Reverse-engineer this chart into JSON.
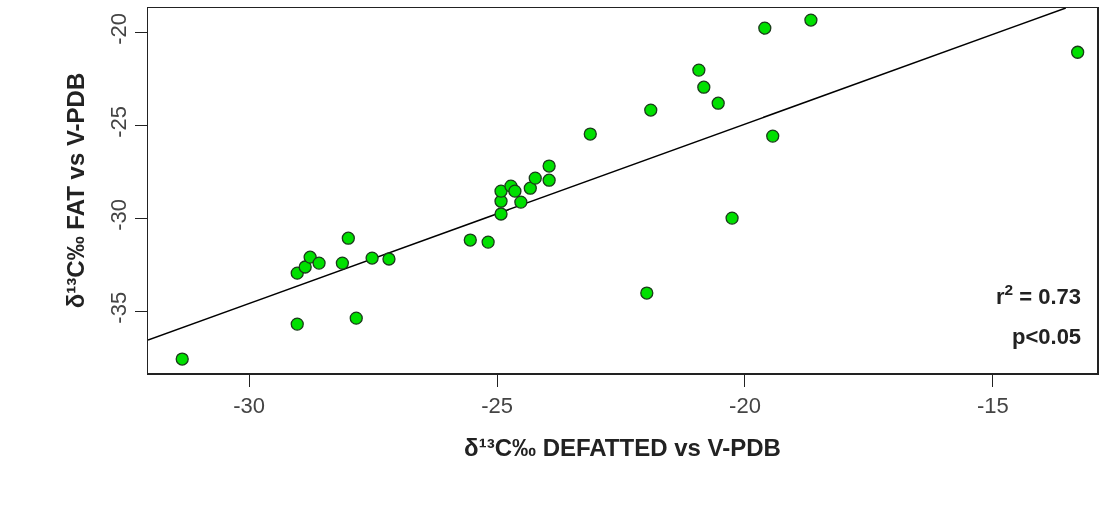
{
  "chart_data": {
    "type": "scatter",
    "xlabel": "δ¹³C‰ DEFATTED vs V-PDB",
    "ylabel": "δ¹³C‰ FAT vs V-PDB",
    "series": [
      {
        "color": "#00e000",
        "x": [
          -31.35,
          -29.03,
          -28.87,
          -28.77,
          -28.59,
          -28.0,
          -28.12,
          -27.52,
          -27.18,
          -29.03,
          -27.84,
          -25.54,
          -25.18,
          -24.92,
          -24.92,
          -24.92,
          -24.72,
          -24.64,
          -24.52,
          -24.33,
          -24.23,
          -23.95,
          null,
          -23.95,
          -20.26,
          -21.98,
          -23.12,
          -21.9,
          -20.93,
          -20.83,
          -20.54,
          -19.6,
          -18.67,
          -13.29,
          -19.44
        ],
        "values": [
          -37.58,
          -32.96,
          -32.63,
          -32.1,
          -32.42,
          -31.08,
          -32.42,
          -32.15,
          -32.2,
          -35.7,
          -35.38,
          -31.18,
          -31.29,
          -29.78,
          -29.09,
          -28.55,
          -28.28,
          -28.55,
          -29.14,
          -28.39,
          -27.85,
          -27.96,
          null,
          -27.2,
          -30.0,
          -34.03,
          -25.48,
          -24.19,
          -22.04,
          -22.96,
          -23.82,
          -19.78,
          -19.35,
          -21.08,
          -25.59
        ]
      },
      {
        "type": "line",
        "marker": "none",
        "color": "#000000",
        "x": [
          -32.04,
          -13.53
        ],
        "values": [
          -36.56,
          -18.7
        ]
      }
    ],
    "marker": "circle",
    "line_style": "solid",
    "xlim": [
      -32.04,
      -12.9
    ],
    "ylim": [
      -38.33,
      -18.7
    ],
    "xticks": [
      -30,
      -25,
      -20,
      -15
    ],
    "yticks": [
      -35,
      -30,
      -25,
      -20
    ],
    "annotations": [
      "r$^{2}$ = 0.73",
      "p<0.05"
    ]
  }
}
